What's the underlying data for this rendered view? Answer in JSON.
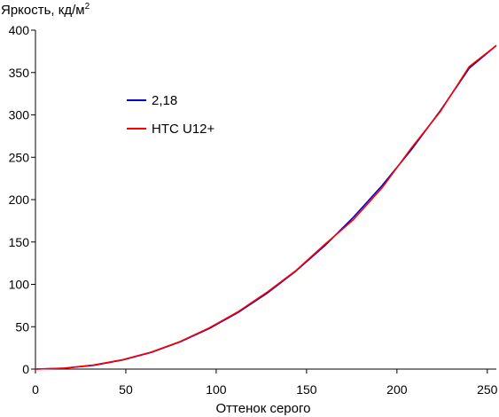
{
  "chart_data": {
    "type": "line",
    "ylabel": "Яркость, кд/м",
    "ylabel_superscript": "2",
    "xlabel": "Оттенок серого",
    "xlim": [
      0,
      255
    ],
    "ylim": [
      0,
      400
    ],
    "x_ticks": [
      0,
      50,
      100,
      150,
      200,
      250
    ],
    "y_ticks": [
      0,
      50,
      100,
      150,
      200,
      250,
      300,
      350,
      400
    ],
    "grid": false,
    "legend_position": "upper-left",
    "series": [
      {
        "name": "2,18",
        "color": "#0000cc",
        "x": [
          0,
          16,
          32,
          48,
          64,
          80,
          96,
          112,
          128,
          144,
          160,
          176,
          192,
          208,
          224,
          240,
          255
        ],
        "y": [
          0,
          1.0,
          4.4,
          10.6,
          19.7,
          32.0,
          47.7,
          66.7,
          89.3,
          115.5,
          145.5,
          179.4,
          217.2,
          259.1,
          305.0,
          355.1,
          382.0
        ]
      },
      {
        "name": "HTC U12+",
        "color": "#ff0000",
        "x": [
          0,
          16,
          32,
          48,
          64,
          80,
          96,
          112,
          128,
          144,
          160,
          176,
          192,
          208,
          224,
          240,
          255
        ],
        "y": [
          0,
          1.2,
          4.8,
          11.0,
          20.0,
          32.5,
          48.5,
          67.5,
          90.5,
          116.0,
          147.0,
          176.5,
          214.5,
          261.0,
          304.0,
          357.0,
          382.0
        ]
      }
    ]
  }
}
